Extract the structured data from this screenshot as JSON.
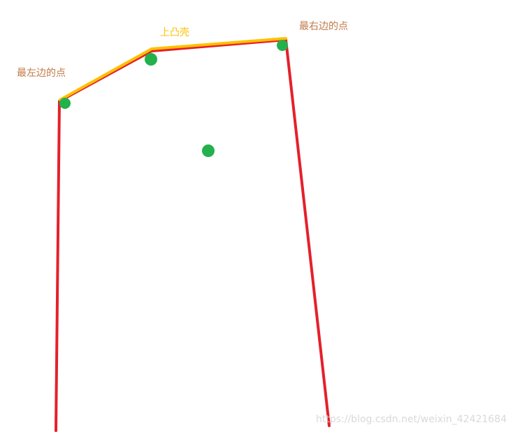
{
  "labels": {
    "leftmost_point": "最左边的点",
    "upper_hull": "上凸壳",
    "rightmost_point": "最右边的点"
  },
  "watermark": "https://blog.csdn.net/weixin_42421684",
  "colors": {
    "background": "#ffffff",
    "boundary_line": "#e5202a",
    "upper_hull_line": "#ffc000",
    "point": "#22b14c",
    "label_text": "#c07a48",
    "upper_hull_label": "#ffc000",
    "watermark": "#d3d3d3"
  },
  "points_count": 4
}
